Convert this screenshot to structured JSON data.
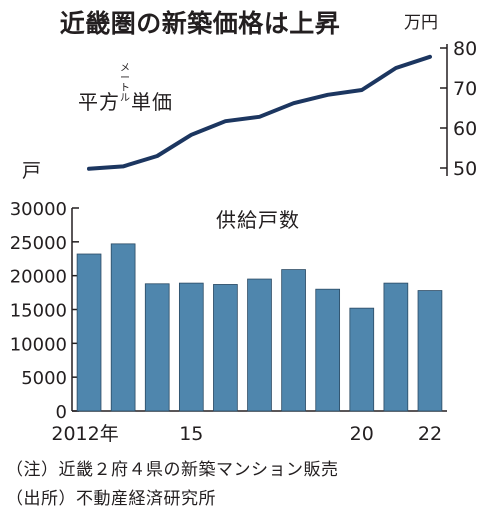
{
  "title": "近畿圏の新築価格は上昇",
  "notes": [
    "（注）近畿２府４県の新築マンション販売",
    "（出所）不動産経済研究所"
  ],
  "chart_data": [
    {
      "type": "line",
      "label_main": "平方",
      "label_small": "メートル",
      "label_tail": "単価",
      "unit": "万円",
      "y_axis_side": "right",
      "ylim": [
        48,
        81
      ],
      "y_ticks": [
        "50",
        "60",
        "70",
        "80"
      ],
      "x": [
        2012,
        2013,
        2014,
        2015,
        2016,
        2017,
        2018,
        2019,
        2020,
        2021,
        2022
      ],
      "values": [
        49.8,
        50.4,
        53.0,
        58.3,
        61.7,
        62.8,
        66.2,
        68.3,
        69.5,
        75.0,
        77.8
      ],
      "color": "#1c3660",
      "grid": false
    },
    {
      "type": "bar",
      "label": "供給戸数",
      "unit": "戸",
      "categories": [
        "2012年",
        "",
        "",
        "15",
        "",
        "",
        "",
        "",
        "20",
        "",
        "22"
      ],
      "x": [
        2012,
        2013,
        2014,
        2015,
        2016,
        2017,
        2018,
        2019,
        2020,
        2021,
        2022
      ],
      "values": [
        23200,
        24700,
        18800,
        18900,
        18700,
        19500,
        20900,
        18000,
        15200,
        18900,
        17800
      ],
      "ylim": [
        0,
        30000
      ],
      "y_ticks": [
        "0",
        "5000",
        "10000",
        "15000",
        "20000",
        "25000",
        "30000"
      ],
      "color": "#4f86ad",
      "grid": false
    }
  ]
}
